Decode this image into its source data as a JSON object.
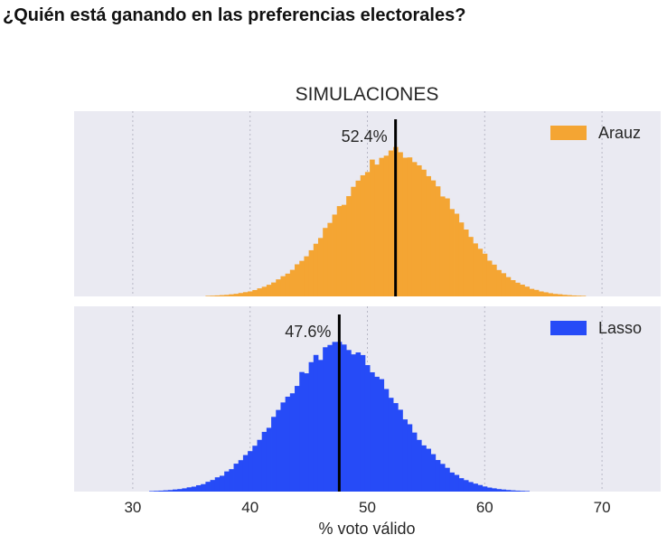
{
  "page": {
    "heading": "¿Quién está ganando en las preferencias electorales?"
  },
  "chart_data": {
    "type": "histogram",
    "title": "SIMULACIONES",
    "xlabel": "% voto válido",
    "ylabel": "",
    "xlim": [
      25,
      75
    ],
    "xticks": [
      30,
      40,
      50,
      60,
      70
    ],
    "xtick_labels": [
      "30",
      "40",
      "50",
      "60",
      "70"
    ],
    "grid": "vertical-dotted",
    "legend_position": "top-right",
    "panels": [
      {
        "series": {
          "name": "Arauz",
          "color": "#f4a533",
          "mean": 52.4,
          "sd": 4.8,
          "range": [
            31,
            71
          ],
          "bin_width": 0.4
        },
        "reference_value": 52.4,
        "annotation": "52.4%"
      },
      {
        "series": {
          "name": "Lasso",
          "color": "#264bf7",
          "mean": 47.6,
          "sd": 4.8,
          "range": [
            29,
            69
          ],
          "bin_width": 0.4
        },
        "reference_value": 47.6,
        "annotation": "47.6%"
      }
    ]
  }
}
